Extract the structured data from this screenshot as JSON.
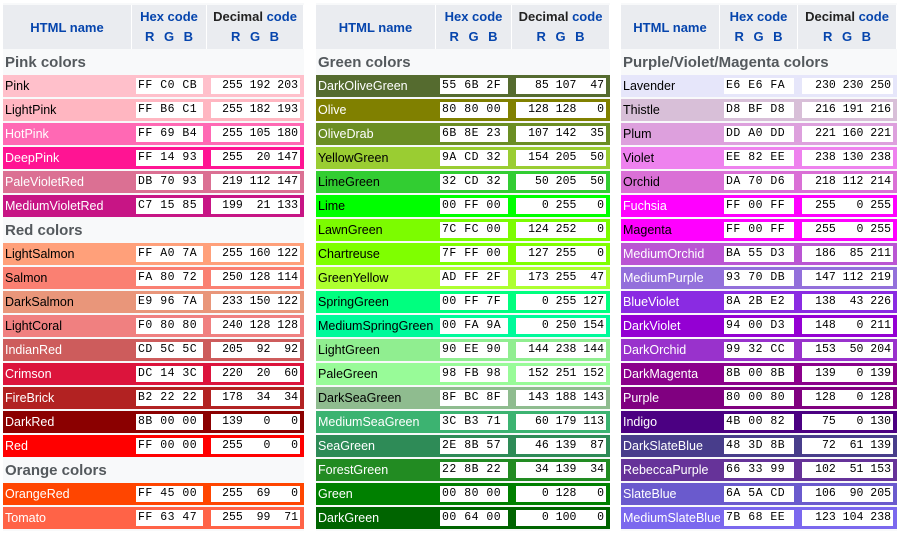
{
  "headers": {
    "name": "HTML name",
    "hex": "Hex code",
    "dec_word": "Decimal",
    "dec_code": "code",
    "rgb": "R G B"
  },
  "columns": [
    {
      "sections": [
        {
          "title": "Pink colors",
          "colors": [
            {
              "name": "Pink",
              "hex": "FF C0 CB",
              "dec": "255 192 203",
              "bg": "#FFC0CB",
              "fg": "#000000"
            },
            {
              "name": "LightPink",
              "hex": "FF B6 C1",
              "dec": "255 182 193",
              "bg": "#FFB6C1",
              "fg": "#000000"
            },
            {
              "name": "HotPink",
              "hex": "FF 69 B4",
              "dec": "255 105 180",
              "bg": "#FF69B4",
              "fg": "#ffffff"
            },
            {
              "name": "DeepPink",
              "hex": "FF 14 93",
              "dec": "255  20 147",
              "bg": "#FF1493",
              "fg": "#ffffff"
            },
            {
              "name": "PaleVioletRed",
              "hex": "DB 70 93",
              "dec": "219 112 147",
              "bg": "#DB7093",
              "fg": "#ffffff"
            },
            {
              "name": "MediumVioletRed",
              "hex": "C7 15 85",
              "dec": "199  21 133",
              "bg": "#C71585",
              "fg": "#ffffff"
            }
          ]
        },
        {
          "title": "Red colors",
          "colors": [
            {
              "name": "LightSalmon",
              "hex": "FF A0 7A",
              "dec": "255 160 122",
              "bg": "#FFA07A",
              "fg": "#000000"
            },
            {
              "name": "Salmon",
              "hex": "FA 80 72",
              "dec": "250 128 114",
              "bg": "#FA8072",
              "fg": "#000000"
            },
            {
              "name": "DarkSalmon",
              "hex": "E9 96 7A",
              "dec": "233 150 122",
              "bg": "#E9967A",
              "fg": "#000000"
            },
            {
              "name": "LightCoral",
              "hex": "F0 80 80",
              "dec": "240 128 128",
              "bg": "#F08080",
              "fg": "#000000"
            },
            {
              "name": "IndianRed",
              "hex": "CD 5C 5C",
              "dec": "205  92  92",
              "bg": "#CD5C5C",
              "fg": "#ffffff"
            },
            {
              "name": "Crimson",
              "hex": "DC 14 3C",
              "dec": "220  20  60",
              "bg": "#DC143C",
              "fg": "#ffffff"
            },
            {
              "name": "FireBrick",
              "hex": "B2 22 22",
              "dec": "178  34  34",
              "bg": "#B22222",
              "fg": "#ffffff"
            },
            {
              "name": "DarkRed",
              "hex": "8B 00 00",
              "dec": "139   0   0",
              "bg": "#8B0000",
              "fg": "#ffffff"
            },
            {
              "name": "Red",
              "hex": "FF 00 00",
              "dec": "255   0   0",
              "bg": "#FF0000",
              "fg": "#ffffff"
            }
          ]
        },
        {
          "title": "Orange colors",
          "colors": [
            {
              "name": "OrangeRed",
              "hex": "FF 45 00",
              "dec": "255  69   0",
              "bg": "#FF4500",
              "fg": "#ffffff"
            },
            {
              "name": "Tomato",
              "hex": "FF 63 47",
              "dec": "255  99  71",
              "bg": "#FF6347",
              "fg": "#ffffff"
            }
          ]
        }
      ]
    },
    {
      "sections": [
        {
          "title": "Green colors",
          "colors": [
            {
              "name": "DarkOliveGreen",
              "hex": "55 6B 2F",
              "dec": " 85 107  47",
              "bg": "#556B2F",
              "fg": "#ffffff"
            },
            {
              "name": "Olive",
              "hex": "80 80 00",
              "dec": "128 128   0",
              "bg": "#808000",
              "fg": "#ffffff"
            },
            {
              "name": "OliveDrab",
              "hex": "6B 8E 23",
              "dec": "107 142  35",
              "bg": "#6B8E23",
              "fg": "#ffffff"
            },
            {
              "name": "YellowGreen",
              "hex": "9A CD 32",
              "dec": "154 205  50",
              "bg": "#9ACD32",
              "fg": "#000000"
            },
            {
              "name": "LimeGreen",
              "hex": "32 CD 32",
              "dec": " 50 205  50",
              "bg": "#32CD32",
              "fg": "#000000"
            },
            {
              "name": "Lime",
              "hex": "00 FF 00",
              "dec": "  0 255   0",
              "bg": "#00FF00",
              "fg": "#000000"
            },
            {
              "name": "LawnGreen",
              "hex": "7C FC 00",
              "dec": "124 252   0",
              "bg": "#7CFC00",
              "fg": "#000000"
            },
            {
              "name": "Chartreuse",
              "hex": "7F FF 00",
              "dec": "127 255   0",
              "bg": "#7FFF00",
              "fg": "#000000"
            },
            {
              "name": "GreenYellow",
              "hex": "AD FF 2F",
              "dec": "173 255  47",
              "bg": "#ADFF2F",
              "fg": "#000000"
            },
            {
              "name": "SpringGreen",
              "hex": "00 FF 7F",
              "dec": "  0 255 127",
              "bg": "#00FF7F",
              "fg": "#000000"
            },
            {
              "name": "MediumSpringGreen",
              "hex": "00 FA 9A",
              "dec": "  0 250 154",
              "bg": "#00FA9A",
              "fg": "#000000"
            },
            {
              "name": "LightGreen",
              "hex": "90 EE 90",
              "dec": "144 238 144",
              "bg": "#90EE90",
              "fg": "#000000"
            },
            {
              "name": "PaleGreen",
              "hex": "98 FB 98",
              "dec": "152 251 152",
              "bg": "#98FB98",
              "fg": "#000000"
            },
            {
              "name": "DarkSeaGreen",
              "hex": "8F BC 8F",
              "dec": "143 188 143",
              "bg": "#8FBC8F",
              "fg": "#000000"
            },
            {
              "name": "MediumSeaGreen",
              "hex": "3C B3 71",
              "dec": " 60 179 113",
              "bg": "#3CB371",
              "fg": "#ffffff"
            },
            {
              "name": "SeaGreen",
              "hex": "2E 8B 57",
              "dec": " 46 139  87",
              "bg": "#2E8B57",
              "fg": "#ffffff"
            },
            {
              "name": "ForestGreen",
              "hex": "22 8B 22",
              "dec": " 34 139  34",
              "bg": "#228B22",
              "fg": "#ffffff"
            },
            {
              "name": "Green",
              "hex": "00 80 00",
              "dec": "  0 128   0",
              "bg": "#008000",
              "fg": "#ffffff"
            },
            {
              "name": "DarkGreen",
              "hex": "00 64 00",
              "dec": "  0 100   0",
              "bg": "#006400",
              "fg": "#ffffff"
            }
          ]
        }
      ]
    },
    {
      "sections": [
        {
          "title": "Purple/Violet/Magenta colors",
          "colors": [
            {
              "name": "Lavender",
              "hex": "E6 E6 FA",
              "dec": "230 230 250",
              "bg": "#E6E6FA",
              "fg": "#000000"
            },
            {
              "name": "Thistle",
              "hex": "D8 BF D8",
              "dec": "216 191 216",
              "bg": "#D8BFD8",
              "fg": "#000000"
            },
            {
              "name": "Plum",
              "hex": "DD A0 DD",
              "dec": "221 160 221",
              "bg": "#DDA0DD",
              "fg": "#000000"
            },
            {
              "name": "Violet",
              "hex": "EE 82 EE",
              "dec": "238 130 238",
              "bg": "#EE82EE",
              "fg": "#000000"
            },
            {
              "name": "Orchid",
              "hex": "DA 70 D6",
              "dec": "218 112 214",
              "bg": "#DA70D6",
              "fg": "#000000"
            },
            {
              "name": "Fuchsia",
              "hex": "FF 00 FF",
              "dec": "255   0 255",
              "bg": "#FF00FF",
              "fg": "#ffffff"
            },
            {
              "name": "Magenta",
              "hex": "FF 00 FF",
              "dec": "255   0 255",
              "bg": "#FF00FF",
              "fg": "#000000"
            },
            {
              "name": "MediumOrchid",
              "hex": "BA 55 D3",
              "dec": "186  85 211",
              "bg": "#BA55D3",
              "fg": "#ffffff"
            },
            {
              "name": "MediumPurple",
              "hex": "93 70 DB",
              "dec": "147 112 219",
              "bg": "#9370DB",
              "fg": "#ffffff"
            },
            {
              "name": "BlueViolet",
              "hex": "8A 2B E2",
              "dec": "138  43 226",
              "bg": "#8A2BE2",
              "fg": "#ffffff"
            },
            {
              "name": "DarkViolet",
              "hex": "94 00 D3",
              "dec": "148   0 211",
              "bg": "#9400D3",
              "fg": "#ffffff"
            },
            {
              "name": "DarkOrchid",
              "hex": "99 32 CC",
              "dec": "153  50 204",
              "bg": "#9932CC",
              "fg": "#ffffff"
            },
            {
              "name": "DarkMagenta",
              "hex": "8B 00 8B",
              "dec": "139   0 139",
              "bg": "#8B008B",
              "fg": "#ffffff"
            },
            {
              "name": "Purple",
              "hex": "80 00 80",
              "dec": "128   0 128",
              "bg": "#800080",
              "fg": "#ffffff"
            },
            {
              "name": "Indigo",
              "hex": "4B 00 82",
              "dec": " 75   0 130",
              "bg": "#4B0082",
              "fg": "#ffffff"
            },
            {
              "name": "DarkSlateBlue",
              "hex": "48 3D 8B",
              "dec": " 72  61 139",
              "bg": "#483D8B",
              "fg": "#ffffff"
            },
            {
              "name": "RebeccaPurple",
              "hex": "66 33 99",
              "dec": "102  51 153",
              "bg": "#663399",
              "fg": "#ffffff"
            },
            {
              "name": "SlateBlue",
              "hex": "6A 5A CD",
              "dec": "106  90 205",
              "bg": "#6A5ACD",
              "fg": "#ffffff"
            },
            {
              "name": "MediumSlateBlue",
              "hex": "7B 68 EE",
              "dec": "123 104 238",
              "bg": "#7B68EE",
              "fg": "#ffffff"
            }
          ]
        }
      ]
    }
  ]
}
